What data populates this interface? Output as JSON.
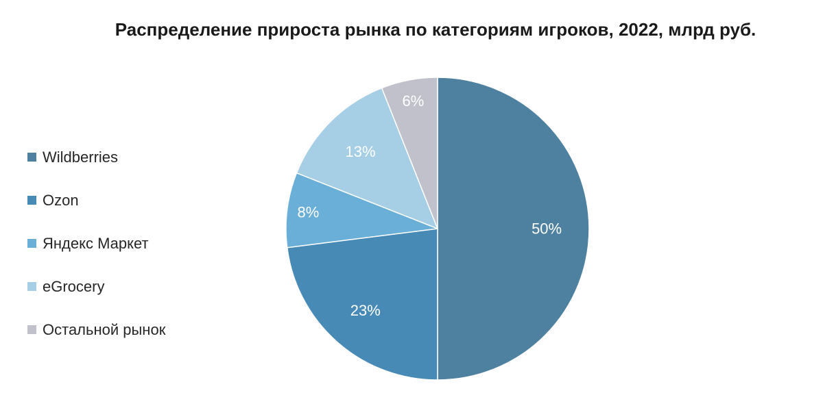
{
  "chart_data": {
    "type": "pie",
    "title": "Распределение прироста рынка по категориям игроков, 2022, млрд руб.",
    "legend_position": "left",
    "start_angle_deg": 0,
    "direction": "clockwise",
    "slices": [
      {
        "name": "Wildberries",
        "value": 50,
        "label": "50%",
        "color": "#4e81a0"
      },
      {
        "name": "Ozon",
        "value": 23,
        "label": "23%",
        "color": "#478ab5"
      },
      {
        "name": "Яндекс Маркет",
        "value": 8,
        "label": "8%",
        "color": "#6aafd8"
      },
      {
        "name": "eGrocery",
        "value": 13,
        "label": "13%",
        "color": "#a6cfe6"
      },
      {
        "name": "Остальной рынок",
        "value": 6,
        "label": "6%",
        "color": "#c0c1cb"
      }
    ]
  }
}
